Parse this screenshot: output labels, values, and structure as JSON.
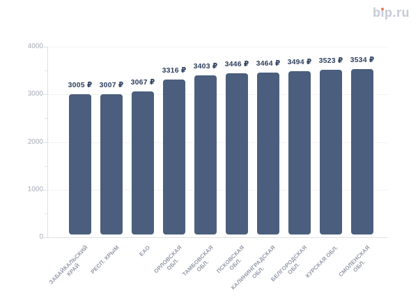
{
  "logo": {
    "text": "bip.ru",
    "text_color": "#c6cad5",
    "accent_dot_color": "#ee7a54"
  },
  "chart_data": {
    "type": "bar",
    "title": "",
    "xlabel": "",
    "ylabel": "",
    "categories": [
      "ЗАБАЙКАЛЬСКИЙ\nКРАЙ",
      "РЕСП. КРЫМ",
      "ЕАО",
      "ОРЛОВСКАЯ\nОБЛ.",
      "ТАМБОВСКАЯ\nОБЛ.",
      "ПСКОВСКАЯ\nОБЛ.",
      "КАЛИНИНГРАДСКАЯ\nОБЛ.",
      "БЕЛГОРОДСКАЯ\nОБЛ.",
      "КУРСКАЯ ОБЛ.",
      "СМОЛЕНСКАЯ\nОБЛ."
    ],
    "values": [
      3005,
      3007,
      3067,
      3316,
      3403,
      3446,
      3464,
      3494,
      3523,
      3534
    ],
    "value_labels": [
      "3005 ₽",
      "3007 ₽",
      "3067 ₽",
      "3316 ₽",
      "3403 ₽",
      "3446 ₽",
      "3464 ₽",
      "3494 ₽",
      "3523 ₽",
      "3534 ₽"
    ],
    "currency_suffix": "₽",
    "ylim": [
      0,
      4000
    ],
    "y_ticks": [
      0,
      1000,
      2000,
      3000,
      4000
    ],
    "y_minor_step": 500,
    "grid": "horizontal dotted lines at major y ticks",
    "legend": "none",
    "bar_color": "#4b5e7d",
    "value_label_color": "#2e3f5e",
    "y_label_color": "#a5abb8",
    "x_label_color": "#9299a8"
  }
}
